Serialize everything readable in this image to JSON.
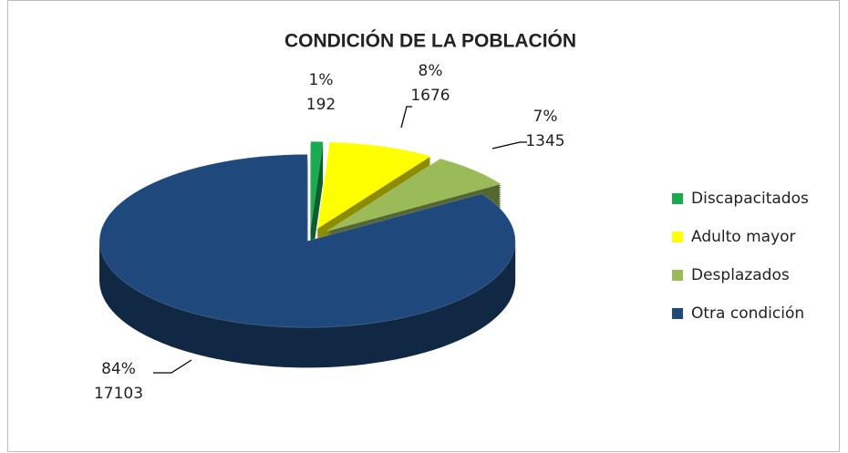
{
  "chart_data": {
    "type": "pie3d",
    "title": "CONDICIÓN DE LA POBLACIÓN",
    "categories": [
      "Discapacitados",
      "Adulto mayor",
      "Desplazados",
      "Otra condición"
    ],
    "values": [
      192,
      1676,
      1345,
      17103
    ],
    "percentages": [
      {
        "value": 1,
        "label": "1%"
      },
      {
        "value": 8,
        "label": "8%"
      },
      {
        "value": 7,
        "label": "7%"
      },
      {
        "value": 84,
        "label": "84%"
      }
    ],
    "colors": [
      "#1aab4f",
      "#ffff00",
      "#9bbb59",
      "#1f497d"
    ],
    "legend": "right"
  }
}
